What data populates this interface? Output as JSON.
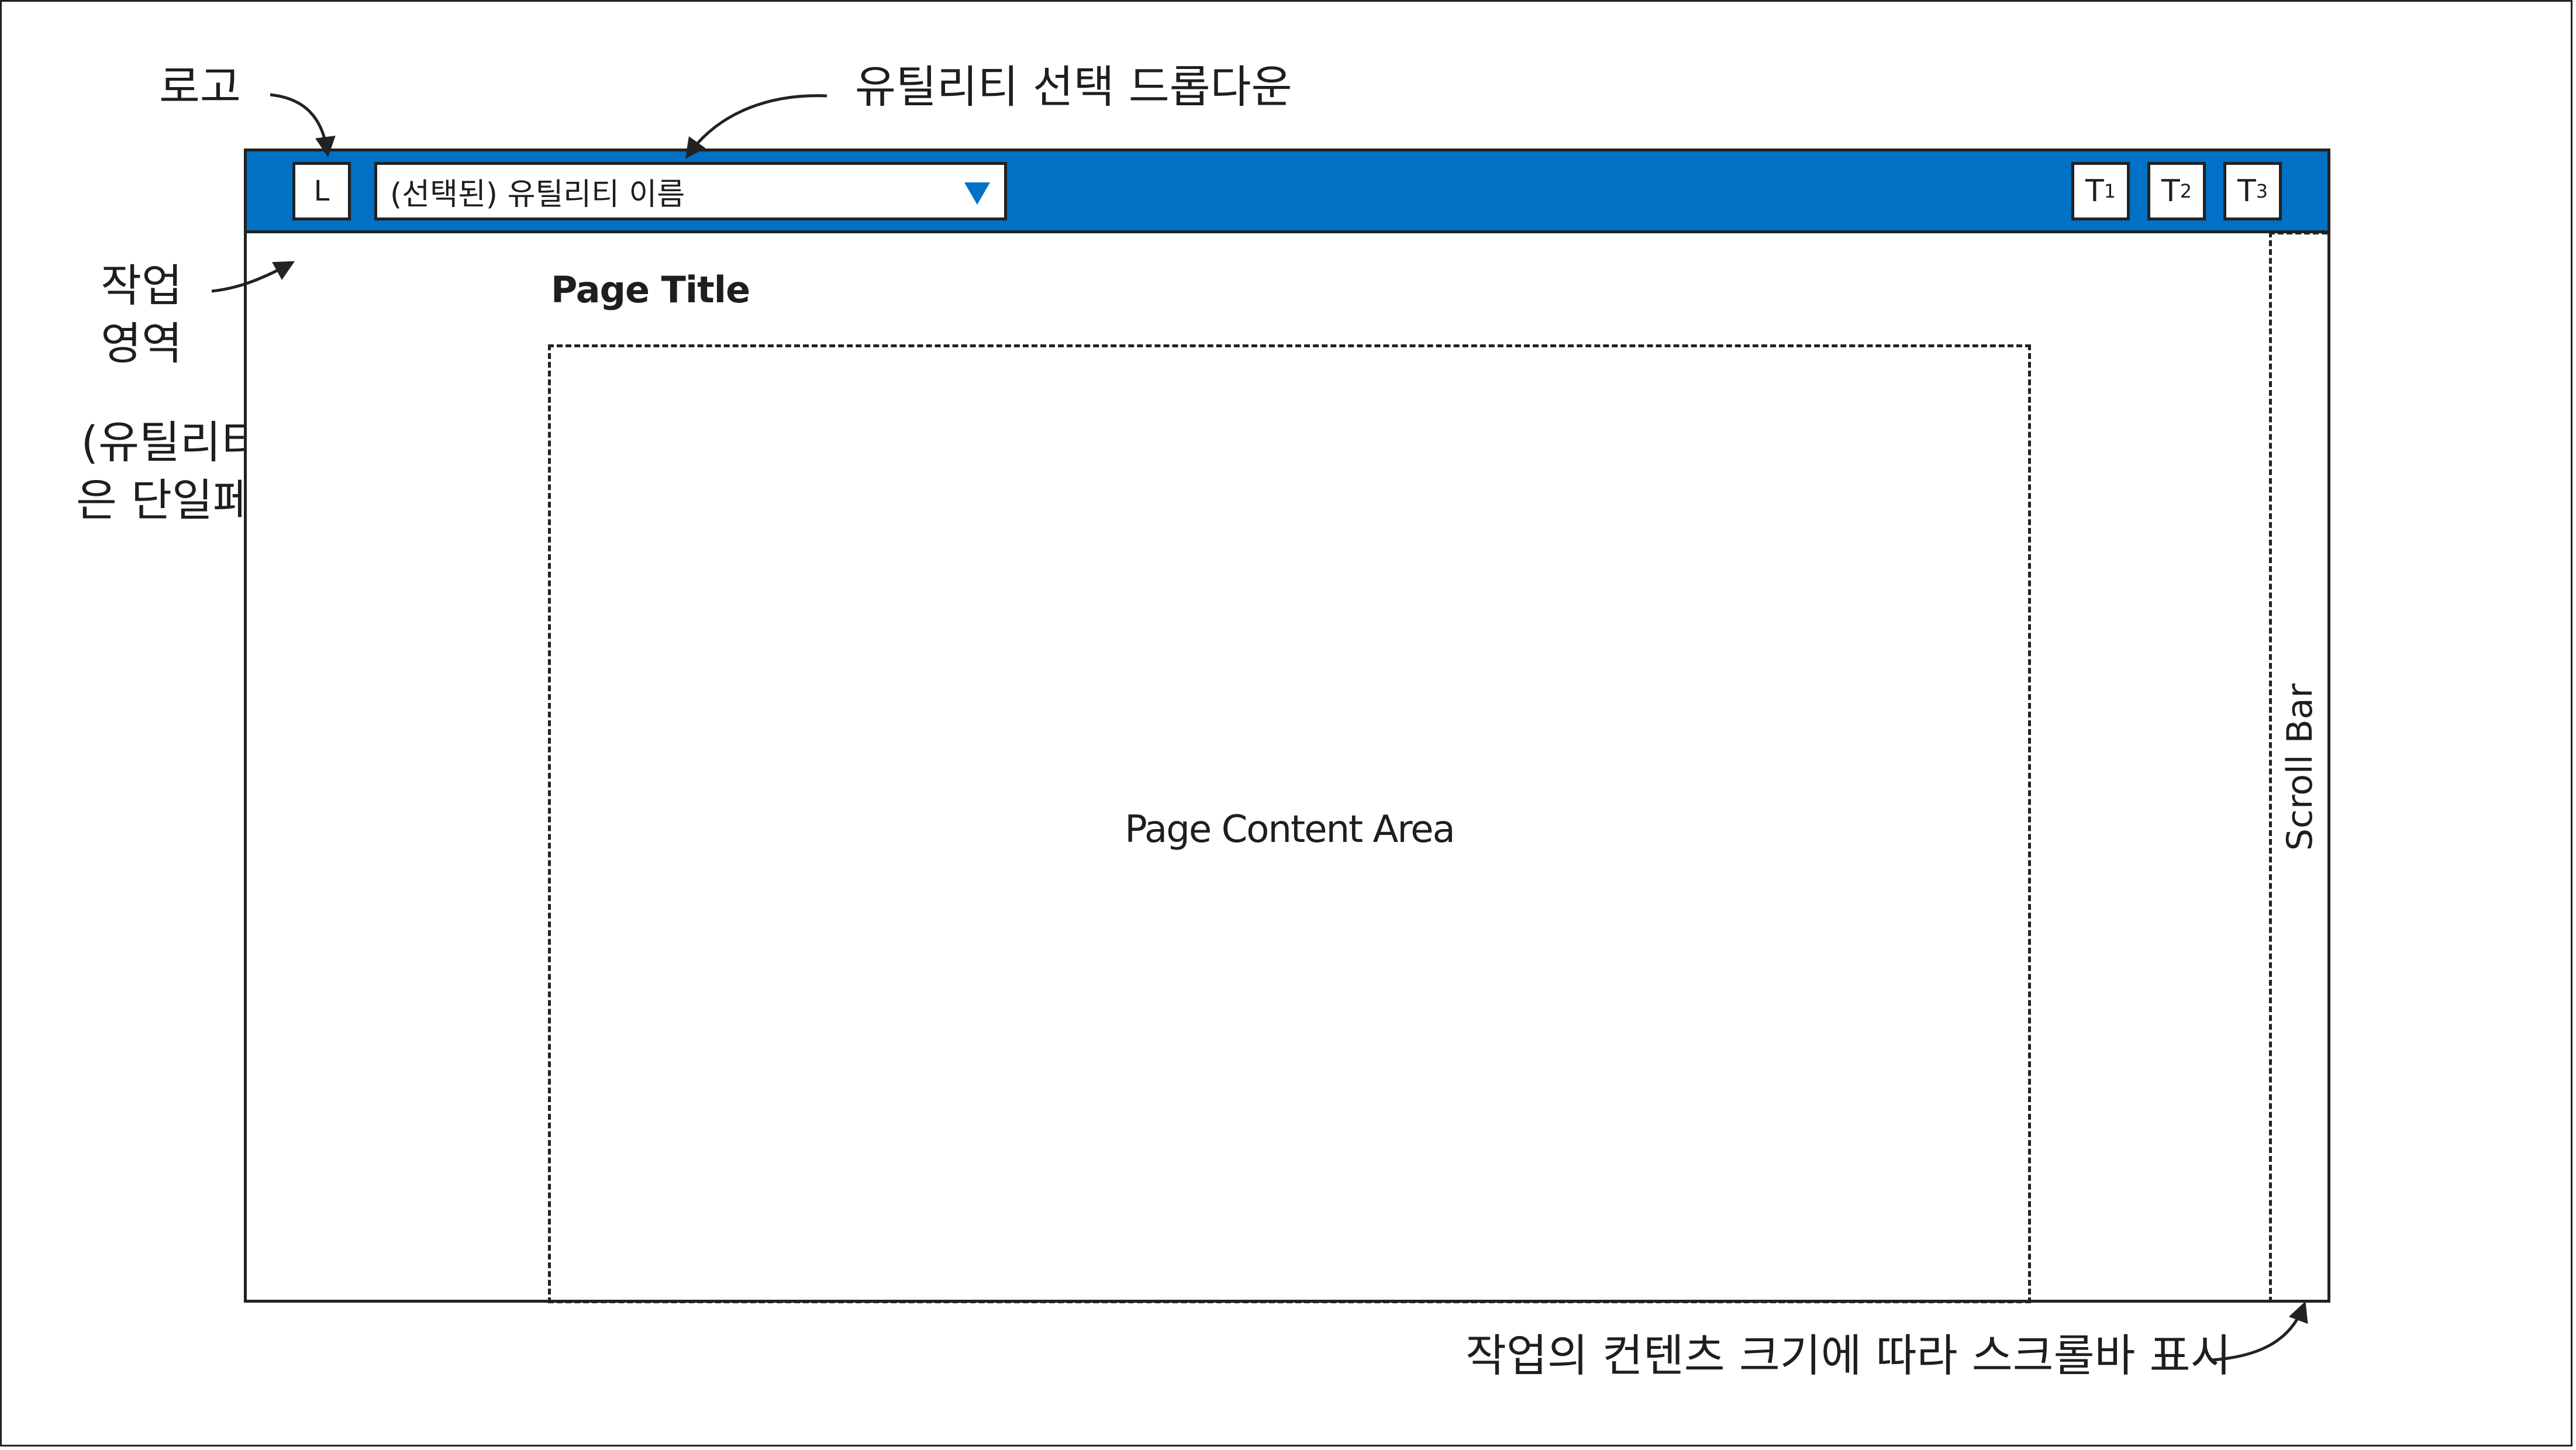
{
  "annotations": {
    "logo": "로고",
    "dropdown": "유틸리티 선택 드롭다운",
    "workspace_line1": "작업",
    "workspace_line2": "영역",
    "workspace_note_line1": "(유틸리티별 작업영역",
    "workspace_note_line2": "은 단일페이지로 구성)",
    "scrollbar_note": "작업의 컨텐츠 크기에 따라 스크롤바 표시"
  },
  "topbar": {
    "color": "#0071c5",
    "logo_label": "L",
    "dropdown_value": "(선택된) 유틸리티 이름",
    "tools": [
      {
        "label": "T",
        "sub": "1"
      },
      {
        "label": "T",
        "sub": "2"
      },
      {
        "label": "T",
        "sub": "3"
      }
    ]
  },
  "workspace": {
    "page_title": "Page Title",
    "content_label": "Page Content Area",
    "scrollbar_label": "Scroll Bar"
  }
}
